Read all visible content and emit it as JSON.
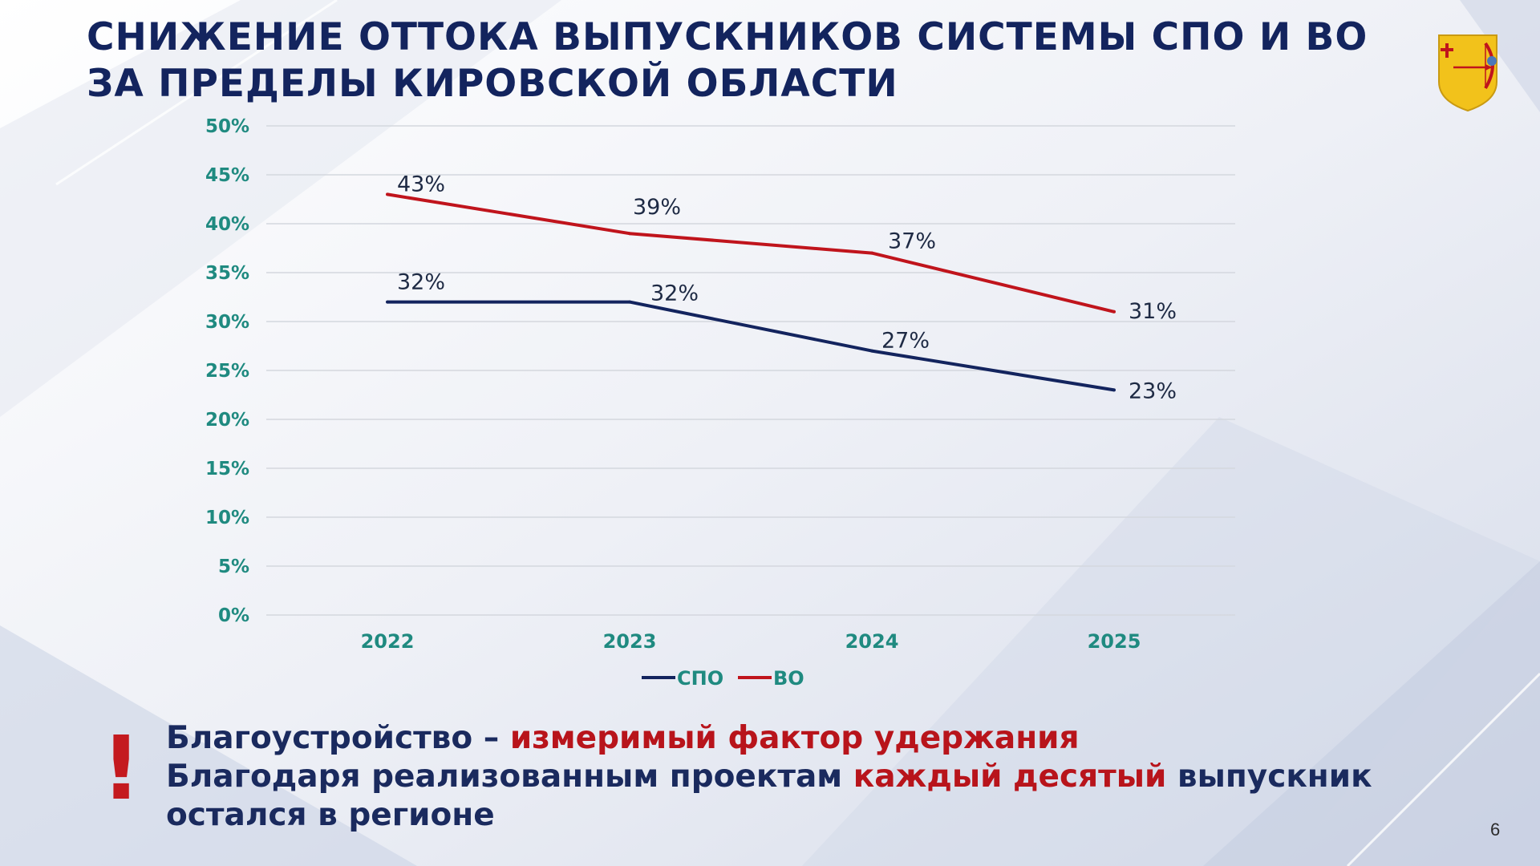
{
  "slide": {
    "title_line1": "СНИЖЕНИЕ ОТТОКА ВЫПУСКНИКОВ СИСТЕМЫ СПО И ВО",
    "title_line2": "ЗА ПРЕДЕЛЫ КИРОВСКОЙ ОБЛАСТИ",
    "page_number": "6",
    "emblem_icon": "kirov-coat-of-arms-icon"
  },
  "chart_data": {
    "type": "line",
    "title": "",
    "xlabel": "",
    "ylabel": "",
    "categories": [
      "2022",
      "2023",
      "2024",
      "2025"
    ],
    "y_ticks": [
      "0%",
      "5%",
      "10%",
      "15%",
      "20%",
      "25%",
      "30%",
      "35%",
      "40%",
      "45%",
      "50%"
    ],
    "ylim": [
      0,
      50
    ],
    "grid": true,
    "legend_position": "bottom",
    "series": [
      {
        "name": "СПО",
        "values": [
          32,
          32,
          27,
          23
        ],
        "labels": [
          "32%",
          "32%",
          "27%",
          "23%"
        ],
        "color": "#13245e"
      },
      {
        "name": "ВО",
        "values": [
          43,
          39,
          37,
          31
        ],
        "labels": [
          "43%",
          "39%",
          "37%",
          "31%"
        ],
        "color": "#c0141c"
      }
    ]
  },
  "note": {
    "line1_part1": "Благоустройство – ",
    "line1_part2": "измеримый фактор удержания",
    "line2_part1": "Благодаря реализованным проектам ",
    "line2_part2": "каждый десятый",
    "line2_part3": " выпускник",
    "line3": "остался в регионе",
    "exclamation": "!"
  },
  "colors": {
    "title": "#13245e",
    "axis_labels": "#1f8a80",
    "accent_red": "#c0141c"
  }
}
